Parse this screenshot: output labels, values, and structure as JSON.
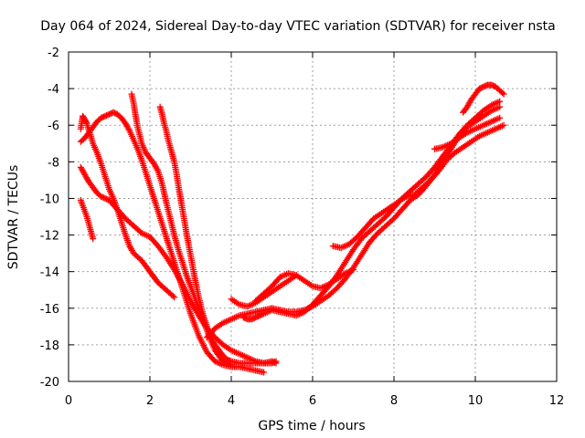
{
  "chart_data": {
    "type": "scatter",
    "title": "Day 064 of 2024, Sidereal Day-to-day VTEC variation (SDTVAR) for receiver nsta",
    "xlabel": "GPS time / hours",
    "ylabel": "SDTVAR / TECUs",
    "xlim": [
      0,
      12
    ],
    "ylim": [
      -20,
      -2
    ],
    "xticks": [
      "0",
      "2",
      "4",
      "6",
      "8",
      "10",
      "12"
    ],
    "yticks": [
      "-20",
      "-18",
      "-16",
      "-14",
      "-12",
      "-10",
      "-8",
      "-6",
      "-4",
      "-2"
    ],
    "grid": true,
    "marker": "+",
    "color": "#ff0000",
    "series": [
      {
        "x": [
          0.3,
          0.35,
          0.4,
          0.45,
          0.5,
          0.55,
          0.6
        ],
        "y": [
          -10.1,
          -10.4,
          -10.7,
          -11.0,
          -11.4,
          -11.8,
          -12.2
        ]
      },
      {
        "x": [
          0.3,
          0.4,
          0.5,
          0.6,
          0.7,
          0.8,
          0.9,
          1.0,
          1.2,
          1.4,
          1.6,
          1.8,
          2.0,
          2.2,
          2.4,
          2.6,
          2.8,
          3.0,
          3.2,
          3.4,
          3.6,
          3.8,
          4.0,
          4.2,
          4.4,
          4.6,
          4.8,
          5.0,
          5.1
        ],
        "y": [
          -8.3,
          -8.7,
          -9.1,
          -9.4,
          -9.7,
          -9.9,
          -10.0,
          -10.1,
          -10.6,
          -11.1,
          -11.5,
          -11.9,
          -12.1,
          -12.6,
          -13.2,
          -13.9,
          -14.7,
          -15.6,
          -16.4,
          -17.1,
          -17.6,
          -18.0,
          -18.3,
          -18.5,
          -18.7,
          -18.9,
          -19.0,
          -19.0,
          -18.9
        ]
      },
      {
        "x": [
          0.3,
          0.35,
          0.4,
          0.45,
          0.5,
          0.55,
          0.6,
          0.7,
          0.8,
          0.9,
          1.0,
          1.1,
          1.2,
          1.3,
          1.4,
          1.5,
          1.6,
          1.7,
          1.8,
          1.9,
          2.0,
          2.1,
          2.2,
          2.3,
          2.4,
          2.5,
          2.6
        ],
        "y": [
          -6.2,
          -5.5,
          -5.7,
          -5.9,
          -6.3,
          -6.6,
          -7.0,
          -7.5,
          -8.1,
          -8.8,
          -9.5,
          -10.0,
          -10.6,
          -11.3,
          -12.0,
          -12.6,
          -13.0,
          -13.2,
          -13.4,
          -13.7,
          -14.0,
          -14.3,
          -14.6,
          -14.8,
          -15.0,
          -15.2,
          -15.4
        ]
      },
      {
        "x": [
          0.3,
          0.4,
          0.5,
          0.6,
          0.7,
          0.8,
          0.9,
          1.0,
          1.1,
          1.2,
          1.3,
          1.4,
          1.5,
          1.6,
          1.7,
          1.8,
          1.9,
          2.0,
          2.2,
          2.4,
          2.6,
          2.8,
          3.0,
          3.2,
          3.4,
          3.6,
          3.8,
          4.0,
          4.2,
          4.4,
          4.6,
          4.8
        ],
        "y": [
          -6.9,
          -6.7,
          -6.4,
          -6.1,
          -5.8,
          -5.6,
          -5.5,
          -5.4,
          -5.3,
          -5.4,
          -5.6,
          -5.9,
          -6.3,
          -6.8,
          -7.3,
          -7.9,
          -8.6,
          -9.3,
          -10.7,
          -12.1,
          -13.5,
          -14.9,
          -16.3,
          -17.5,
          -18.4,
          -18.9,
          -19.1,
          -19.2,
          -19.2,
          -19.3,
          -19.4,
          -19.5
        ]
      },
      {
        "x": [
          1.55,
          1.6,
          1.65,
          1.7,
          1.8,
          1.9,
          2.0,
          2.1,
          2.2,
          2.3,
          2.4,
          2.5,
          2.6,
          2.7,
          2.8,
          2.9,
          3.0,
          3.1,
          3.2,
          3.3,
          3.4,
          3.5,
          3.6,
          3.7,
          3.8,
          3.9,
          4.0
        ],
        "y": [
          -4.3,
          -4.8,
          -5.5,
          -6.1,
          -7.0,
          -7.5,
          -7.8,
          -8.1,
          -8.5,
          -9.2,
          -10.2,
          -11.1,
          -12.0,
          -12.8,
          -13.5,
          -14.2,
          -14.8,
          -15.4,
          -16.0,
          -16.6,
          -17.2,
          -17.8,
          -18.3,
          -18.6,
          -18.9,
          -19.0,
          -19.1
        ]
      },
      {
        "x": [
          2.25,
          2.3,
          2.35,
          2.4,
          2.45,
          2.5,
          2.55,
          2.6,
          2.65,
          2.7,
          2.8,
          2.9,
          3.0,
          3.1,
          3.2,
          3.3,
          3.4,
          3.5,
          3.6,
          3.7,
          3.8,
          3.9,
          4.0,
          4.2,
          4.4,
          4.6,
          4.8,
          5.0,
          5.1
        ],
        "y": [
          -5.0,
          -5.4,
          -5.9,
          -6.3,
          -6.8,
          -7.2,
          -7.6,
          -8.0,
          -8.6,
          -9.3,
          -10.6,
          -11.9,
          -13.1,
          -14.3,
          -15.4,
          -16.3,
          -17.0,
          -17.6,
          -18.0,
          -18.3,
          -18.6,
          -18.8,
          -18.9,
          -19.0,
          -19.0,
          -19.0,
          -19.0,
          -18.9,
          -19.0
        ]
      },
      {
        "x": [
          3.4,
          3.6,
          3.8,
          4.0,
          4.2,
          4.4,
          4.6,
          4.8,
          5.0,
          5.2,
          5.4,
          5.6,
          5.8,
          6.0,
          6.2,
          6.4,
          6.6,
          6.8,
          7.0,
          7.2,
          7.4,
          7.6,
          7.8,
          8.0,
          8.2,
          8.4,
          8.6,
          8.8,
          9.0,
          9.2,
          9.4,
          9.6,
          9.8,
          10.0,
          10.2,
          10.4,
          10.6
        ],
        "y": [
          -17.6,
          -17.1,
          -16.8,
          -16.6,
          -16.4,
          -16.3,
          -16.2,
          -16.1,
          -16.0,
          -16.1,
          -16.2,
          -16.2,
          -16.1,
          -15.9,
          -15.6,
          -15.3,
          -14.9,
          -14.4,
          -13.8,
          -13.1,
          -12.4,
          -11.9,
          -11.5,
          -11.1,
          -10.6,
          -10.1,
          -9.8,
          -9.3,
          -8.7,
          -8.0,
          -7.3,
          -6.6,
          -6.1,
          -5.8,
          -5.5,
          -5.2,
          -5.0
        ]
      },
      {
        "x": [
          4.3,
          4.4,
          4.5,
          4.6,
          4.7,
          4.8,
          5.0,
          5.2,
          5.4,
          5.6,
          5.8,
          6.0,
          6.2,
          6.4,
          6.6,
          6.8,
          7.0,
          7.2,
          7.4,
          7.6,
          7.8,
          8.0,
          8.2,
          8.4,
          8.6,
          8.8,
          9.0,
          9.2,
          9.4,
          9.6,
          9.8,
          10.0,
          10.2,
          10.4,
          10.6
        ],
        "y": [
          -16.5,
          -16.6,
          -16.6,
          -16.5,
          -16.4,
          -16.3,
          -16.1,
          -16.2,
          -16.3,
          -16.4,
          -16.2,
          -15.8,
          -15.3,
          -14.8,
          -14.2,
          -13.5,
          -12.8,
          -12.2,
          -11.8,
          -11.4,
          -11.0,
          -10.5,
          -10.0,
          -9.6,
          -9.2,
          -8.8,
          -8.3,
          -7.7,
          -7.1,
          -6.5,
          -6.0,
          -5.6,
          -5.2,
          -4.9,
          -4.7
        ]
      },
      {
        "x": [
          4.0,
          4.2,
          4.4,
          4.6,
          4.8,
          5.0,
          5.2,
          5.4,
          5.6
        ],
        "y": [
          -15.5,
          -15.8,
          -15.9,
          -15.7,
          -15.4,
          -15.1,
          -14.8,
          -14.5,
          -14.2
        ]
      },
      {
        "x": [
          4.6,
          4.8,
          5.0,
          5.2,
          5.4,
          5.6,
          5.8,
          6.0,
          6.2,
          6.4,
          6.6,
          6.8,
          7.0
        ],
        "y": [
          -15.6,
          -15.2,
          -14.8,
          -14.3,
          -14.1,
          -14.2,
          -14.5,
          -14.8,
          -14.9,
          -14.7,
          -14.4,
          -14.1,
          -13.9
        ]
      },
      {
        "x": [
          6.5,
          6.7,
          6.9,
          7.1,
          7.3,
          7.5,
          7.7,
          7.9,
          8.1,
          8.3,
          8.5,
          8.7,
          8.9,
          9.1,
          9.3,
          9.5,
          9.7,
          9.9,
          10.1,
          10.3,
          10.5,
          10.7
        ],
        "y": [
          -12.6,
          -12.7,
          -12.5,
          -12.1,
          -11.6,
          -11.1,
          -10.8,
          -10.5,
          -10.2,
          -9.9,
          -9.8,
          -9.4,
          -9.0,
          -8.5,
          -7.9,
          -7.5,
          -7.2,
          -6.9,
          -6.6,
          -6.4,
          -6.2,
          -6.0
        ]
      },
      {
        "x": [
          9.0,
          9.2,
          9.4,
          9.6,
          9.8,
          10.0,
          10.2,
          10.4,
          10.6
        ],
        "y": [
          -7.3,
          -7.2,
          -7.0,
          -6.7,
          -6.4,
          -6.2,
          -6.0,
          -5.8,
          -5.6
        ]
      },
      {
        "x": [
          9.7,
          9.8,
          9.9,
          10.0,
          10.1,
          10.2,
          10.3,
          10.4,
          10.5,
          10.6,
          10.7
        ],
        "y": [
          -5.3,
          -5.0,
          -4.6,
          -4.3,
          -4.0,
          -3.9,
          -3.8,
          -3.8,
          -3.9,
          -4.1,
          -4.3
        ]
      }
    ]
  }
}
